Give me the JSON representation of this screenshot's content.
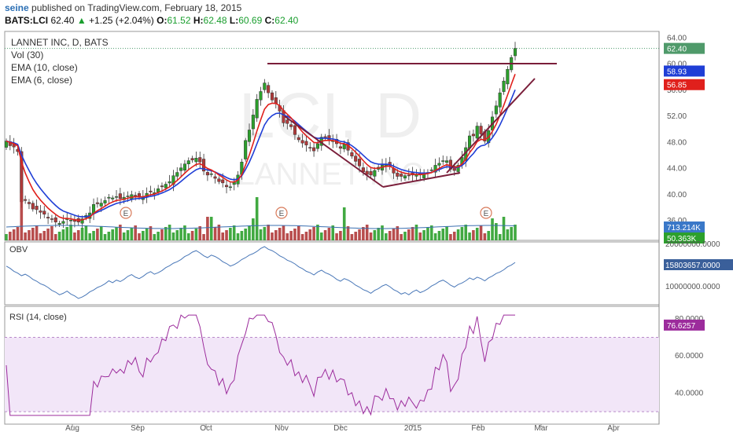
{
  "header": {
    "author": "seine",
    "published_text": " published on TradingView.com, February 18, 2015",
    "symbol": "BATS:LCI",
    "last": "62.40",
    "change": "+1.25 (+2.04%)",
    "o_label": "O:",
    "o": "61.52",
    "h_label": "H:",
    "h": "62.48",
    "l_label": "L:",
    "l": "60.69",
    "c_label": "C:",
    "c": "62.40"
  },
  "legend": {
    "title": "LANNET INC, D, BATS",
    "vol": "Vol (30)",
    "ema10": "EMA (10, close)",
    "ema6": "EMA (6, close)"
  },
  "watermark": {
    "big": "LCI, D",
    "small": "LANNET INC"
  },
  "colors": {
    "up": "#2ca02c",
    "down": "#b03a3a",
    "ema10": "#1f3ed6",
    "ema6": "#e0201c",
    "trend": "#7a1e3a",
    "obv": "#4a78b8",
    "rsi": "#9c2c9c",
    "rsi_band": "#f2e6f8"
  },
  "price_tags": {
    "last": "62.40",
    "ema10": "58.93",
    "ema6": "56.85",
    "vol": "713.214K",
    "vol_ma": "50.363K"
  },
  "obv": {
    "label": "OBV",
    "tag": "15803657.0000",
    "ticks": [
      "20000000.0000",
      "10000000.0000"
    ]
  },
  "rsi": {
    "label": "RSI (14, close)",
    "tag": "76.6257",
    "ticks": [
      "80.0000",
      "60.0000",
      "40.0000"
    ]
  },
  "chart_data": {
    "type": "candlestick",
    "price_axis": {
      "ticks": [
        "64.00",
        "60.00",
        "56.00",
        "52.00",
        "48.00",
        "44.00",
        "40.00",
        "36.00"
      ],
      "ylim": [
        33,
        65
      ]
    },
    "x_ticks": [
      "Aug",
      "Sep",
      "Oct",
      "Nov",
      "Dec",
      "2015",
      "Feb",
      "Mar",
      "Apr"
    ],
    "earnings_marker": "E",
    "close_series": [
      48.2,
      47.5,
      47.3,
      46.6,
      38.9,
      39.1,
      38.6,
      37.8,
      37.7,
      37.3,
      37.0,
      36.4,
      36.2,
      35.8,
      35.6,
      35.9,
      36.3,
      36.1,
      35.9,
      35.8,
      36.3,
      36.8,
      37.2,
      38.5,
      38.6,
      38.7,
      39.1,
      39.6,
      39.5,
      39.7,
      39.4,
      39.6,
      39.8,
      40.0,
      39.9,
      39.6,
      39.7,
      40.2,
      40.4,
      40.3,
      40.9,
      41.2,
      41.6,
      42.0,
      42.9,
      43.4,
      44.1,
      44.7,
      45.2,
      45.3,
      45.6,
      45.0,
      43.6,
      43.0,
      43.2,
      42.5,
      42.0,
      41.8,
      41.2,
      41.2,
      41.9,
      43.0,
      45.0,
      48.3,
      49.9,
      52.2,
      54.6,
      55.8,
      57.1,
      55.6,
      54.5,
      53.9,
      52.8,
      51.0,
      50.9,
      50.4,
      49.2,
      48.4,
      47.9,
      47.6,
      47.2,
      46.7,
      47.8,
      48.8,
      48.6,
      48.3,
      48.3,
      47.8,
      47.1,
      47.7,
      46.8,
      45.9,
      45.1,
      44.4,
      43.5,
      43.1,
      43.0,
      43.7,
      44.2,
      44.5,
      44.7,
      44.4,
      43.3,
      42.8,
      42.8,
      42.9,
      42.9,
      43.0,
      43.1,
      43.0,
      43.3,
      43.4,
      43.8,
      44.5,
      44.8,
      45.2,
      45.2,
      43.9,
      43.7,
      44.5,
      45.7,
      47.2,
      49.0,
      49.0,
      50.5,
      49.3,
      48.2,
      49.8,
      51.9,
      53.6,
      55.6,
      57.4,
      59.2,
      61.0,
      62.4
    ],
    "volume_note": "Vol (30) bars below price pane; E = earnings markers"
  }
}
